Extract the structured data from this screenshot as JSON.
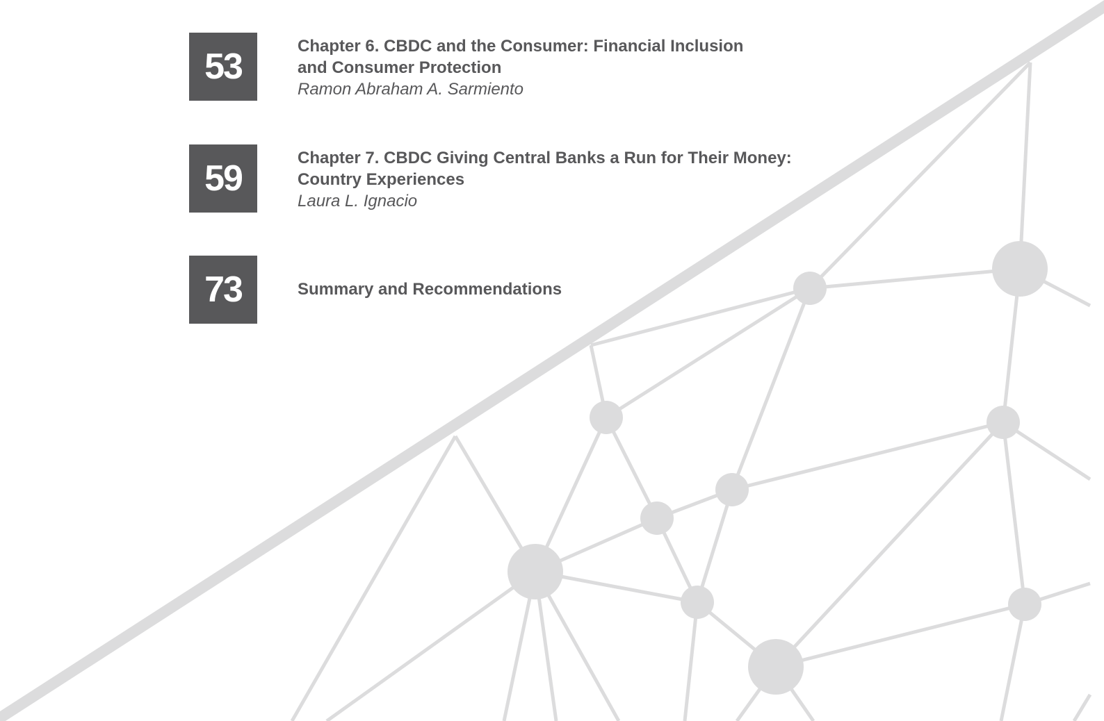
{
  "toc": {
    "entries": [
      {
        "page": "53",
        "title": [
          "Chapter 6. CBDC and the Consumer: Financial Inclusion",
          "and Consumer Protection"
        ],
        "author": "Ramon Abraham A. Sarmiento"
      },
      {
        "page": "59",
        "title": [
          "Chapter 7. CBDC Giving Central Banks a Run for Their Money:",
          "Country Experiences"
        ],
        "author": "Laura L. Ignacio"
      },
      {
        "page": "73",
        "title": [
          "Summary and Recommendations"
        ]
      }
    ]
  }
}
